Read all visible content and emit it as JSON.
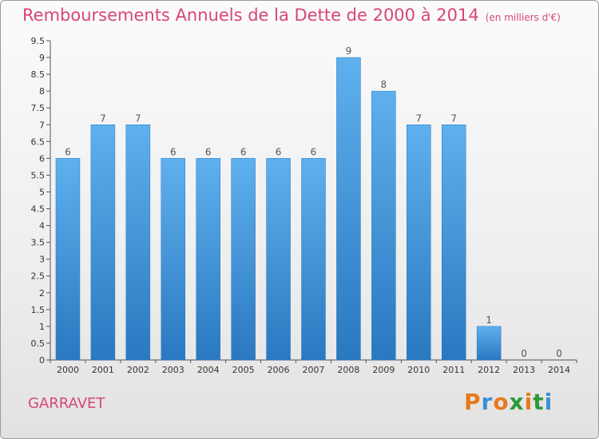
{
  "header": {
    "title": "Remboursements Annuels de la Dette de 2000 à 2014",
    "unit": "(en milliers d'€)"
  },
  "footer": {
    "commune": "GARRAVET",
    "brand": "Proxiti",
    "brand_colors": [
      "#e8791e",
      "#3a8fd6",
      "#e8791e",
      "#2e9a3a",
      "#e8791e",
      "#2e9a3a",
      "#3a8fd6"
    ]
  },
  "chart_data": {
    "type": "bar",
    "categories": [
      "2000",
      "2001",
      "2002",
      "2003",
      "2004",
      "2005",
      "2006",
      "2007",
      "2008",
      "2009",
      "2010",
      "2011",
      "2012",
      "2013",
      "2014"
    ],
    "values": [
      6,
      7,
      7,
      6,
      6,
      6,
      6,
      6,
      9,
      8,
      7,
      7,
      1,
      0,
      0
    ],
    "ylim": [
      0,
      9.5
    ],
    "yticks": [
      {
        "v": 0,
        "label": "0"
      },
      {
        "v": 0.5,
        "label": "0.5"
      },
      {
        "v": 1,
        "label": "1"
      },
      {
        "v": 1.5,
        "label": "1.5"
      },
      {
        "v": 2,
        "label": "2"
      },
      {
        "v": 2.5,
        "label": "2.5"
      },
      {
        "v": 3,
        "label": "3"
      },
      {
        "v": 3.5,
        "label": "3.5"
      },
      {
        "v": 4,
        "label": "4"
      },
      {
        "v": 4.5,
        "label": "4.5"
      },
      {
        "v": 5,
        "label": "5"
      },
      {
        "v": 5.5,
        "label": "5.5"
      },
      {
        "v": 6,
        "label": "6"
      },
      {
        "v": 6.5,
        "label": "6.5"
      },
      {
        "v": 7,
        "label": "7"
      },
      {
        "v": 7.5,
        "label": "7.5"
      },
      {
        "v": 8,
        "label": "8"
      },
      {
        "v": 8.5,
        "label": "8.5"
      },
      {
        "v": 9,
        "label": "9"
      },
      {
        "v": 9.5,
        "label": "9.5"
      }
    ],
    "grid": false,
    "legend": "none",
    "bar_color": "#3a93da",
    "title_color": "#d8457a"
  }
}
